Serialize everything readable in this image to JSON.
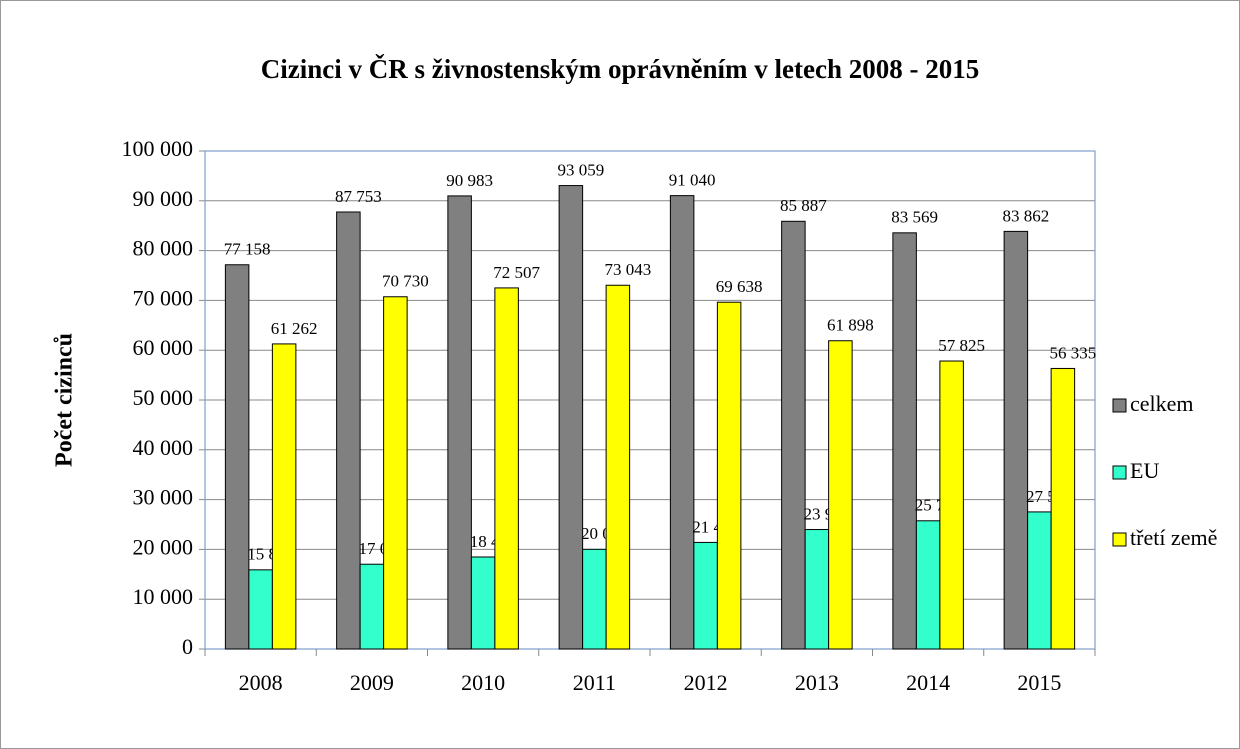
{
  "chart_data": {
    "type": "bar",
    "title": "Cizinci v ČR s živnostenským oprávněním v letech 2008 - 2015",
    "y_label": "Počet cizinců",
    "categories": [
      "2008",
      "2009",
      "2010",
      "2011",
      "2012",
      "2013",
      "2014",
      "2015"
    ],
    "series": [
      {
        "name": "celkem",
        "color": "#808080",
        "values": [
          77158,
          87753,
          90983,
          93059,
          91040,
          85887,
          83569,
          83862
        ],
        "value_labels": [
          "77 158",
          "87 753",
          "90 983",
          "93 059",
          "91 040",
          "85 887",
          "83 569",
          "83 862"
        ]
      },
      {
        "name": "EU",
        "color": "#33ffcc",
        "values": [
          15896,
          17023,
          18476,
          20016,
          21402,
          23989,
          25744,
          27527
        ],
        "value_labels": [
          "15 896",
          "17 023",
          "18 476",
          "20 016",
          "21 402",
          "23 989",
          "25 744",
          "27 527"
        ]
      },
      {
        "name": "třetí země",
        "color": "#ffff00",
        "values": [
          61262,
          70730,
          72507,
          73043,
          69638,
          61898,
          57825,
          56335
        ],
        "value_labels": [
          "61 262",
          "70 730",
          "72 507",
          "73 043",
          "69 638",
          "61 898",
          "57 825",
          "56 335"
        ]
      }
    ],
    "ylim": [
      0,
      100000
    ],
    "yticks": [
      0,
      {
        "value": 10000,
        "label": "10 000"
      },
      {
        "value": 20000,
        "label": "20 000"
      },
      {
        "value": 30000,
        "label": "30 000"
      },
      {
        "value": 40000,
        "label": "40 000"
      },
      {
        "value": 50000,
        "label": "50 000"
      },
      {
        "value": 60000,
        "label": "60 000"
      },
      {
        "value": 70000,
        "label": "70 000"
      },
      {
        "value": 80000,
        "label": "80 000"
      },
      {
        "value": 90000,
        "label": "90 000"
      },
      {
        "value": 100000,
        "label": "100 000"
      }
    ],
    "grid": true,
    "legend": "right"
  }
}
